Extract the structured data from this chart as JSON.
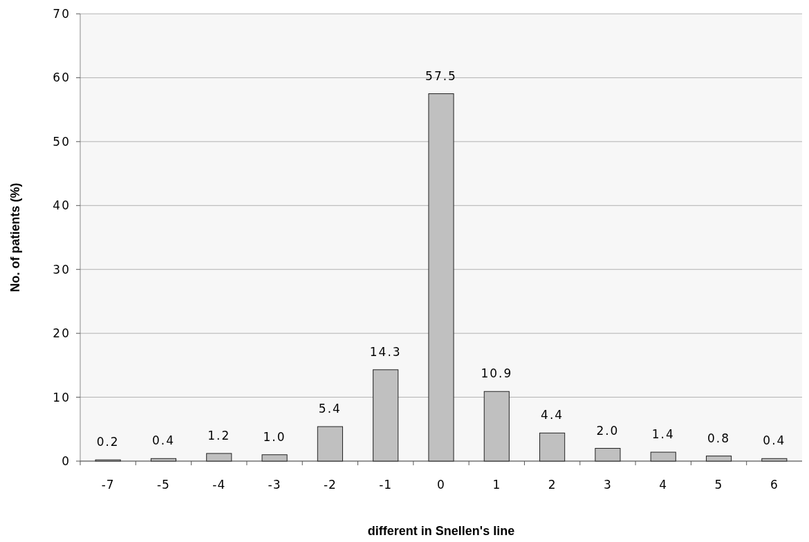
{
  "chart_data": {
    "type": "bar",
    "xlabel": "different in Snellen's line",
    "ylabel": "No. of patients (%)",
    "categories": [
      "-7",
      "-5",
      "-4",
      "-3",
      "-2",
      "-1",
      "0",
      "1",
      "2",
      "3",
      "4",
      "5",
      "6"
    ],
    "values": [
      0.2,
      0.4,
      1.2,
      1.0,
      5.4,
      14.3,
      57.5,
      10.9,
      4.4,
      2.0,
      1.4,
      0.8,
      0.4
    ],
    "value_labels": [
      "0.2",
      "0.4",
      "1.2",
      "1.0",
      "5.4",
      "14.3",
      "57.5",
      "10.9",
      "4.4",
      "2.0",
      "1.4",
      "0.8",
      "0.4"
    ],
    "color": "#c0c0c0",
    "ylim": [
      0,
      70
    ],
    "yticks": [
      0,
      10,
      20,
      30,
      40,
      50,
      60,
      70
    ],
    "grid": "y"
  }
}
